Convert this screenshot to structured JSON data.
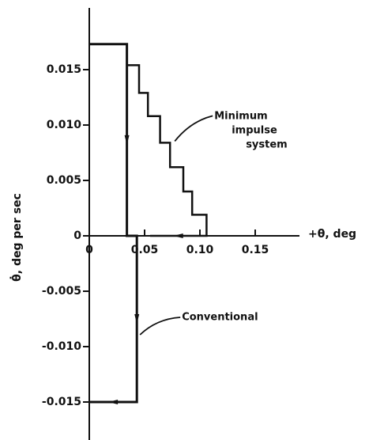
{
  "chart_data": {
    "type": "line",
    "x_label": "+θ, deg",
    "y_label": "θ̇, deg per sec",
    "series": [
      {
        "name": "Conventional",
        "color": "#111111",
        "x": [
          0,
          0.034,
          0.034,
          0.043,
          0.043,
          0
        ],
        "values": [
          0.0173,
          0.0173,
          0,
          0,
          -0.015,
          -0.015
        ]
      },
      {
        "name": "Minimum impulse system",
        "color": "#111111",
        "x": [
          0.034,
          0.045,
          0.045,
          0.053,
          0.053,
          0.064,
          0.064,
          0.073,
          0.073,
          0.085,
          0.085,
          0.093,
          0.093,
          0.106,
          0.106,
          0.055
        ],
        "values": [
          0.0154,
          0.0154,
          0.0129,
          0.0129,
          0.0108,
          0.0108,
          0.0084,
          0.0084,
          0.0062,
          0.0062,
          0.004,
          0.004,
          0.0019,
          0.0019,
          0,
          0
        ]
      }
    ],
    "xlim": [
      -0.06,
      0.19
    ],
    "ylim": [
      -0.018,
      0.02
    ],
    "xticks": [
      0,
      0.05,
      {
        "value": 0.1,
        "label": "0.10"
      },
      0.15
    ],
    "yticks": [
      0.015,
      {
        "value": 0.01,
        "label": "0.010"
      },
      0.005,
      0,
      -0.005,
      {
        "value": -0.01,
        "label": "-0.010"
      },
      -0.015
    ],
    "grid": false
  }
}
